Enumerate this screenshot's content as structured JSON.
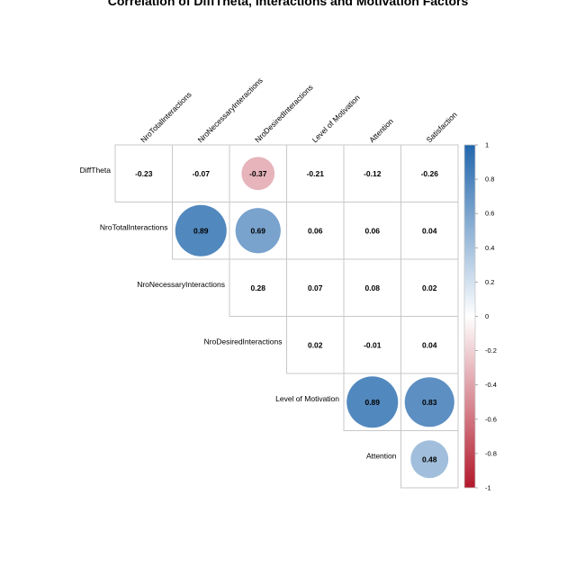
{
  "chart_data": {
    "type": "heatmap",
    "style": "upper-triangle correlation plot, circles sized and colored by correlation",
    "title": "Correlation of DiffTheta, Interactions and Motivation Factors",
    "row_labels": [
      "DiffTheta",
      "NroTotalInteractions",
      "NroNecessaryInteractions",
      "NroDesiredInteractions",
      "Level of Motivation",
      "Attention"
    ],
    "col_labels": [
      "NroTotalInteractions",
      "NroNecessaryInteractions",
      "NroDesiredInteractions",
      "Level of Motivation",
      "Attention",
      "Satisfaction"
    ],
    "cells": [
      {
        "row": 0,
        "col": 0,
        "value": -0.23
      },
      {
        "row": 0,
        "col": 1,
        "value": -0.07
      },
      {
        "row": 0,
        "col": 2,
        "value": -0.37,
        "show_circle": true
      },
      {
        "row": 0,
        "col": 3,
        "value": -0.21
      },
      {
        "row": 0,
        "col": 4,
        "value": -0.12
      },
      {
        "row": 0,
        "col": 5,
        "value": -0.26
      },
      {
        "row": 1,
        "col": 1,
        "value": 0.89,
        "show_circle": true
      },
      {
        "row": 1,
        "col": 2,
        "value": 0.69,
        "show_circle": true
      },
      {
        "row": 1,
        "col": 3,
        "value": 0.06
      },
      {
        "row": 1,
        "col": 4,
        "value": 0.06
      },
      {
        "row": 1,
        "col": 5,
        "value": 0.04
      },
      {
        "row": 2,
        "col": 2,
        "value": 0.28
      },
      {
        "row": 2,
        "col": 3,
        "value": 0.07
      },
      {
        "row": 2,
        "col": 4,
        "value": 0.08
      },
      {
        "row": 2,
        "col": 5,
        "value": 0.02
      },
      {
        "row": 3,
        "col": 3,
        "value": 0.02
      },
      {
        "row": 3,
        "col": 4,
        "value": -0.01
      },
      {
        "row": 3,
        "col": 5,
        "value": 0.04
      },
      {
        "row": 4,
        "col": 4,
        "value": 0.89,
        "show_circle": true
      },
      {
        "row": 4,
        "col": 5,
        "value": 0.83,
        "show_circle": true
      },
      {
        "row": 5,
        "col": 5,
        "value": 0.48,
        "show_circle": true
      }
    ],
    "color_scale": {
      "range": [
        -1,
        1
      ],
      "ticks": [
        "1",
        "0.8",
        "0.6",
        "0.4",
        "0.2",
        "0",
        "-0.2",
        "-0.4",
        "-0.6",
        "-0.8",
        "-1"
      ],
      "colors": {
        "negative": "#B2182B",
        "neutral": "#FFFFFF",
        "positive": "#2166AC"
      },
      "legend_placement": "right"
    }
  }
}
